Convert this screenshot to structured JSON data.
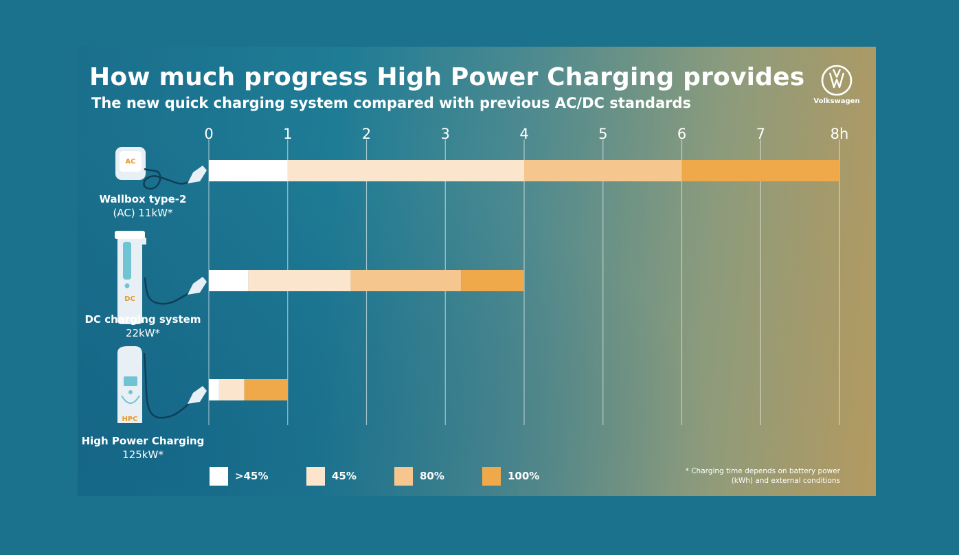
{
  "header": {
    "title": "How much progress High Power Charging provides",
    "subtitle": "The new quick charging system compared with previous AC/DC standards"
  },
  "brand": {
    "name": "Volkswagen"
  },
  "footnote": {
    "line1": "* Charging time depends on battery power",
    "line2": "(kWh) and external conditions"
  },
  "colors": {
    "s1": "#ffffff",
    "s2": "#fbe5cc",
    "s3": "#f6c68f",
    "s4": "#f0a94a",
    "grid": "rgba(255,255,255,0.55)",
    "charger": "#e9f0f5",
    "accent": "#e59a2f"
  },
  "charger_labels": {
    "ac": "AC",
    "dc": "DC",
    "hpc": "HPC"
  },
  "chart_data": {
    "type": "bar",
    "orientation": "horizontal",
    "stacked": true,
    "title": "How much progress High Power Charging provides",
    "subtitle": "The new quick charging system compared with previous AC/DC standards",
    "xlim": [
      0,
      8
    ],
    "x_ticks": [
      "0",
      "1",
      "2",
      "3",
      "4",
      "5",
      "6",
      "7",
      "8h"
    ],
    "x_tick_values": [
      0,
      1,
      2,
      3,
      4,
      5,
      6,
      7,
      8
    ],
    "categories": [
      {
        "name": "Wallbox type-2",
        "detail": "(AC) 11kW*"
      },
      {
        "name": "DC charging system",
        "detail": "22kW*"
      },
      {
        "name": "High Power Charging",
        "detail": "125kW*"
      }
    ],
    "series": [
      {
        "name": ">45%",
        "values": [
          1.0,
          0.5,
          0.13
        ]
      },
      {
        "name": "45%",
        "values": [
          3.0,
          1.3,
          0.32
        ]
      },
      {
        "name": "80%",
        "values": [
          2.0,
          1.4,
          0.0
        ]
      },
      {
        "name": "100%",
        "values": [
          2.0,
          0.8,
          0.55
        ]
      }
    ],
    "legend": ">45%, 45%, 80%, 100%"
  }
}
